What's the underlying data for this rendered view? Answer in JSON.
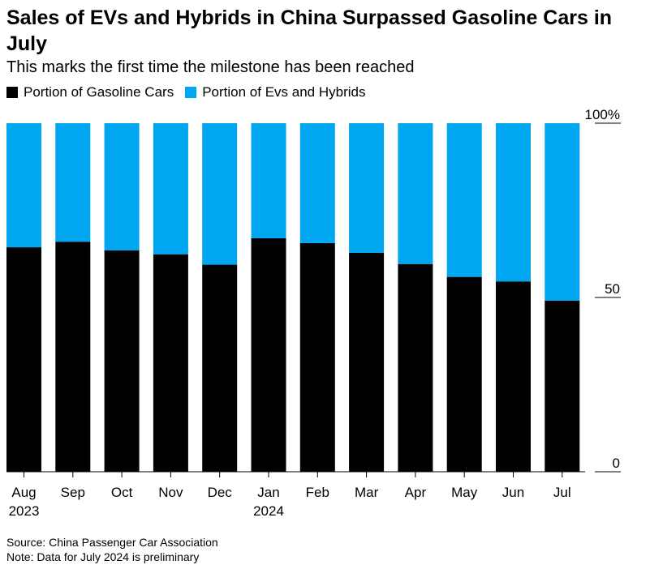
{
  "header": {
    "title": "Sales of EVs and Hybrids in China Surpassed Gasoline Cars in July",
    "subtitle": "This marks the first time the milestone has been reached"
  },
  "legend": {
    "gasoline_label": "Portion of Gasoline Cars",
    "ev_label": "Portion of Evs and Hybrids"
  },
  "colors": {
    "gasoline": "#000000",
    "ev": "#00a6f0"
  },
  "chart_data": {
    "type": "bar",
    "stacked": true,
    "title": "Sales of EVs and Hybrids in China Surpassed Gasoline Cars in July",
    "subtitle": "This marks the first time the milestone has been reached",
    "categories": [
      "Aug",
      "Sep",
      "Oct",
      "Nov",
      "Dec",
      "Jan",
      "Feb",
      "Mar",
      "Apr",
      "May",
      "Jun",
      "Jul"
    ],
    "category_sublabels": [
      "2023",
      "",
      "",
      "",
      "",
      "2024",
      "",
      "",
      "",
      "",
      "",
      ""
    ],
    "series": [
      {
        "name": "Portion of Gasoline Cars",
        "values": [
          64.4,
          66.0,
          63.5,
          62.4,
          59.4,
          67.0,
          65.6,
          62.8,
          59.6,
          55.9,
          54.6,
          49.1
        ]
      },
      {
        "name": "Portion of Evs and Hybrids",
        "values": [
          35.6,
          34.0,
          36.5,
          37.6,
          40.6,
          33.0,
          34.4,
          37.2,
          40.4,
          44.1,
          45.4,
          50.9
        ]
      }
    ],
    "y_ticks": [
      0,
      50,
      100
    ],
    "y_tick_labels": [
      "0",
      "50",
      "100%"
    ],
    "ylim": [
      0,
      100
    ],
    "y_axis_position": "right",
    "legend_position": "top-left",
    "grid": false
  },
  "footer": {
    "source": "Source: China Passenger Car Association",
    "note": "Note: Data for July 2024 is preliminary"
  }
}
